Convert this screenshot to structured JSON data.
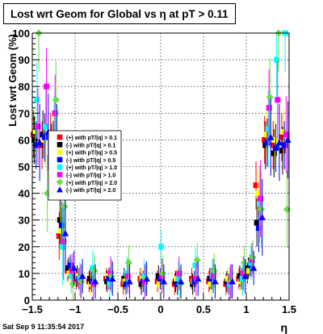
{
  "chart_data": {
    "type": "scatter",
    "title": "Lost wrt Geom for Global vs   η at pT > 0.11",
    "xlabel": "η",
    "ylabel": "Lost wrt Geom (%)",
    "xlim": [
      -1.5,
      1.5
    ],
    "ylim": [
      0,
      100
    ],
    "xticks": [
      "−1.5",
      "−1",
      "−0.5",
      "0",
      "0.5",
      "1",
      "1.5"
    ],
    "yticks": [
      "0",
      "10",
      "20",
      "30",
      "40",
      "50",
      "60",
      "70",
      "80",
      "90",
      "100"
    ],
    "grid": true,
    "legend_position": "left-middle",
    "series": [
      {
        "name": "(+) with pT/|q| > 0.1",
        "color": "#ff0000",
        "marker": "square",
        "x": [
          -1.45,
          -1.35,
          -1.25,
          -1.15,
          -1.05,
          -0.95,
          -0.8,
          -0.6,
          -0.4,
          -0.2,
          0.0,
          0.2,
          0.4,
          0.6,
          0.8,
          0.95,
          1.05,
          1.15,
          1.25,
          1.35,
          1.45
        ],
        "y": [
          62,
          58,
          61,
          24,
          11,
          8,
          7,
          8,
          6,
          8,
          7,
          6,
          8,
          7,
          6,
          8,
          10,
          43,
          60,
          58,
          61
        ]
      },
      {
        "name": "(-) with pT/|q| > 0.1",
        "color": "#000000",
        "marker": "square",
        "x": [
          -1.45,
          -1.35,
          -1.25,
          -1.15,
          -1.05,
          -0.95,
          -0.8,
          -0.6,
          -0.4,
          -0.2,
          0.0,
          0.2,
          0.4,
          0.6,
          0.8,
          0.95,
          1.05,
          1.15,
          1.25,
          1.35,
          1.45
        ],
        "y": [
          60,
          62,
          57,
          30,
          12,
          9,
          8,
          7,
          8,
          6,
          9,
          7,
          6,
          8,
          7,
          9,
          12,
          29,
          58,
          55,
          56
        ]
      },
      {
        "name": "(+) with pT/|q| > 0.5",
        "color": "#ffff00",
        "marker": "square",
        "x": [
          -1.45,
          -1.35,
          -1.25,
          -1.15,
          -1.05,
          -0.95,
          -0.8,
          -0.6,
          -0.4,
          -0.2,
          0.0,
          0.2,
          0.4,
          0.6,
          0.8,
          0.95,
          1.05,
          1.15,
          1.25,
          1.35,
          1.45
        ],
        "y": [
          63,
          60,
          62,
          26,
          10,
          9,
          6,
          9,
          7,
          8,
          6,
          8,
          7,
          6,
          8,
          7,
          11,
          40,
          62,
          60,
          63
        ]
      },
      {
        "name": "(-) with pT/|q| > 0.5",
        "color": "#0000ff",
        "marker": "square",
        "x": [
          -1.45,
          -1.35,
          -1.25,
          -1.15,
          -1.05,
          -0.95,
          -0.8,
          -0.6,
          -0.4,
          -0.2,
          0.0,
          0.2,
          0.4,
          0.6,
          0.8,
          0.95,
          1.05,
          1.15,
          1.25,
          1.35,
          1.45
        ],
        "y": [
          58,
          61,
          58,
          28,
          13,
          8,
          7,
          8,
          6,
          7,
          8,
          6,
          7,
          8,
          6,
          8,
          13,
          27,
          59,
          57,
          58
        ]
      },
      {
        "name": "(+) with pT/|q| > 1.0",
        "color": "#00ffff",
        "marker": "square",
        "x": [
          -1.45,
          -1.35,
          -1.25,
          -1.15,
          -1.05,
          -0.95,
          -0.8,
          -0.6,
          -0.4,
          -0.2,
          0.0,
          0.2,
          0.4,
          0.6,
          0.8,
          0.95,
          1.05,
          1.15,
          1.25,
          1.35,
          1.45
        ],
        "y": [
          75,
          65,
          62,
          20,
          9,
          8,
          12,
          6,
          10,
          9,
          20,
          8,
          13,
          9,
          6,
          8,
          14,
          36,
          64,
          90,
          100
        ]
      },
      {
        "name": "(-) with pT/|q| > 1.0",
        "color": "#ff00ff",
        "marker": "square",
        "x": [
          -1.45,
          -1.35,
          -1.25,
          -1.15,
          -1.05,
          -0.95,
          -0.8,
          -0.6,
          -0.4,
          -0.2,
          0.0,
          0.2,
          0.4,
          0.6,
          0.8,
          0.95,
          1.05,
          1.15,
          1.25,
          1.35,
          1.45
        ],
        "y": [
          65,
          80,
          70,
          22,
          11,
          7,
          6,
          10,
          9,
          7,
          9,
          10,
          8,
          9,
          7,
          10,
          15,
          38,
          72,
          75,
          62
        ]
      },
      {
        "name": "(+) with pT/|q| > 2.0",
        "color": "#66dd44",
        "marker": "diamond",
        "x": [
          -1.45,
          -1.35,
          -1.25,
          -1.15,
          -1.05,
          -0.95,
          -0.8,
          -0.6,
          -0.4,
          -0.2,
          0.0,
          0.2,
          0.4,
          0.6,
          0.8,
          0.95,
          1.05,
          1.15,
          1.25,
          1.35,
          1.45
        ],
        "y": [
          100,
          40,
          75,
          35,
          6,
          7,
          11,
          9,
          14,
          8,
          10,
          6,
          15,
          11,
          7,
          14,
          16,
          34,
          76,
          100,
          34
        ]
      },
      {
        "name": "(-) with pT/|q| > 2.0",
        "color": "#0000ff",
        "marker": "triangle",
        "x": [
          -1.45,
          -1.35,
          -1.25,
          -1.15,
          -1.05,
          -0.95,
          -0.8,
          -0.6,
          -0.4,
          -0.2,
          0.0,
          0.2,
          0.4,
          0.6,
          0.8,
          0.95,
          1.05,
          1.15,
          1.25,
          1.35,
          1.45
        ],
        "y": [
          59,
          63,
          59,
          25,
          12,
          9,
          7,
          8,
          7,
          8,
          7,
          7,
          8,
          7,
          7,
          9,
          12,
          31,
          61,
          59,
          60
        ]
      }
    ]
  },
  "footer": {
    "date": "Sat Sep  9 11:35:54 2017"
  }
}
